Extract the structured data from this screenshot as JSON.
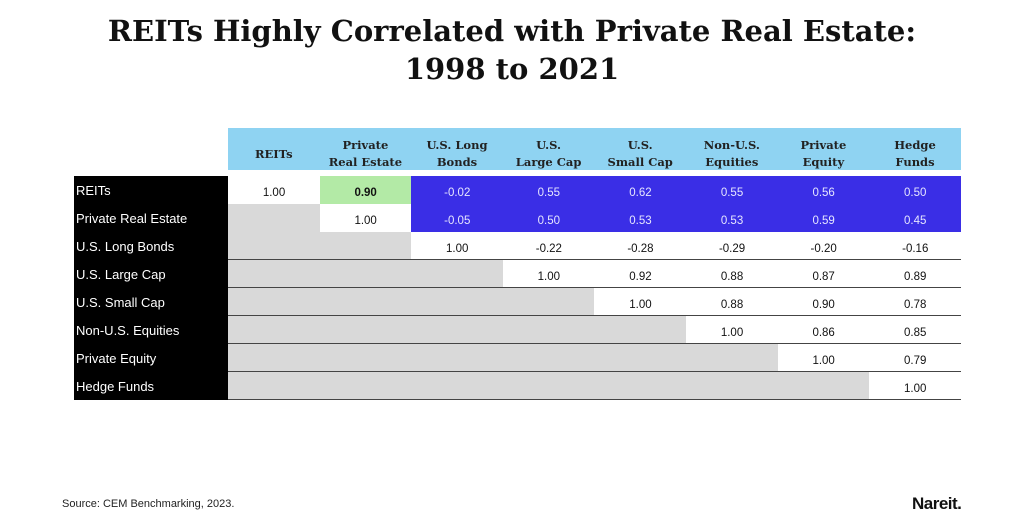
{
  "title_line1": "REITs Highly Correlated with Private Real Estate:",
  "title_line2": "1998 to 2021",
  "source": "Source: CEM Benchmarking, 2023.",
  "logo": "Nareit.",
  "colors": {
    "header": "#8fd3f2",
    "row_label": "#000000",
    "reit_row": "#3a2ee6",
    "highlight": "#b3eaa6",
    "blank": "#d9d9d9"
  },
  "chart_data": {
    "type": "table",
    "title": "REITs Highly Correlated with Private Real Estate: 1998 to 2021",
    "columns": [
      "REITs",
      "Private\nReal Estate",
      "U.S. Long\nBonds",
      "U.S.\nLarge Cap",
      "U.S.\nSmall Cap",
      "Non-U.S.\nEquities",
      "Private\nEquity",
      "Hedge\nFunds"
    ],
    "rows": [
      {
        "label": "REITs",
        "values": [
          "1.00",
          "0.90",
          "-0.02",
          "0.55",
          "0.62",
          "0.55",
          "0.56",
          "0.50"
        ]
      },
      {
        "label": "Private Real Estate",
        "values": [
          null,
          "1.00",
          "-0.05",
          "0.50",
          "0.53",
          "0.53",
          "0.59",
          "0.45"
        ]
      },
      {
        "label": "U.S. Long Bonds",
        "values": [
          null,
          null,
          "1.00",
          "-0.22",
          "-0.28",
          "-0.29",
          "-0.20",
          "-0.16"
        ]
      },
      {
        "label": "U.S. Large Cap",
        "values": [
          null,
          null,
          null,
          "1.00",
          "0.92",
          "0.88",
          "0.87",
          "0.89"
        ]
      },
      {
        "label": "U.S. Small Cap",
        "values": [
          null,
          null,
          null,
          null,
          "1.00",
          "0.88",
          "0.90",
          "0.78"
        ]
      },
      {
        "label": "Non-U.S. Equities",
        "values": [
          null,
          null,
          null,
          null,
          null,
          "1.00",
          "0.86",
          "0.85"
        ]
      },
      {
        "label": "Private Equity",
        "values": [
          null,
          null,
          null,
          null,
          null,
          null,
          "1.00",
          "0.79"
        ]
      },
      {
        "label": "Hedge Funds",
        "values": [
          null,
          null,
          null,
          null,
          null,
          null,
          null,
          "1.00"
        ]
      }
    ],
    "highlight_cell": {
      "row": 0,
      "col": 1
    }
  }
}
